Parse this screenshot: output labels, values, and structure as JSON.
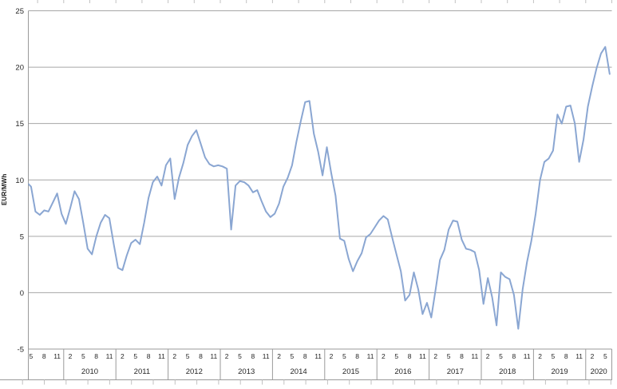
{
  "chart_data": {
    "type": "line",
    "title": "",
    "ylabel": "EUR/MWh",
    "xlabel": "",
    "ylim": [
      -5,
      25
    ],
    "y_ticks": [
      25,
      20,
      15,
      10,
      5,
      0,
      -5
    ],
    "grid": true,
    "legend_position": "none",
    "background": "#ffffff",
    "line_color": "#8aa6d2",
    "gridline_color": "#a6a6a6",
    "axis_color": "#9a9a9a",
    "minor_tick_color": "#c2c2c2",
    "text_color": "#262626",
    "series": [
      {
        "name": "EUR/MWh monthly",
        "start_month": "2009-04",
        "end_month": "2020-06",
        "monthly_values": [
          9.8,
          9.4,
          7.2,
          6.9,
          7.3,
          7.2,
          8.0,
          8.8,
          7.0,
          6.1,
          7.5,
          9.0,
          8.3,
          6.2,
          3.9,
          3.4,
          5.0,
          6.2,
          6.9,
          6.6,
          4.3,
          2.2,
          2.0,
          3.3,
          4.4,
          4.7,
          4.3,
          6.2,
          8.4,
          9.8,
          10.3,
          9.5,
          11.3,
          11.9,
          8.3,
          10.2,
          11.5,
          13.1,
          13.9,
          14.4,
          13.2,
          12.0,
          11.4,
          11.2,
          11.3,
          11.2,
          11.0,
          5.6,
          9.5,
          9.9,
          9.8,
          9.5,
          8.9,
          9.1,
          8.1,
          7.2,
          6.7,
          7.0,
          7.9,
          9.4,
          10.2,
          11.3,
          13.4,
          15.2,
          16.9,
          17.0,
          14.1,
          12.5,
          10.4,
          12.9,
          10.6,
          8.6,
          4.8,
          4.6,
          3.0,
          1.9,
          2.8,
          3.5,
          4.9,
          5.2,
          5.8,
          6.4,
          6.8,
          6.5,
          4.9,
          3.4,
          1.9,
          -0.7,
          -0.2,
          1.8,
          0.3,
          -1.9,
          -0.9,
          -2.2,
          0.3,
          2.9,
          3.8,
          5.6,
          6.4,
          6.3,
          4.7,
          3.9,
          3.8,
          3.6,
          2.0,
          -1.0,
          1.3,
          -0.4,
          -2.9,
          1.8,
          1.4,
          1.2,
          -0.2,
          -3.2,
          0.3,
          2.7,
          4.6,
          7.0,
          10.0,
          11.6,
          11.9,
          12.6,
          15.8,
          15.0,
          16.5,
          16.6,
          15.0,
          11.6,
          13.6,
          16.5,
          18.3,
          19.9,
          21.2,
          21.8,
          19.4
        ]
      }
    ],
    "x_axis": {
      "years": [
        {
          "label": "",
          "month_labels": [
            "5",
            "8",
            "11"
          ]
        },
        {
          "label": "2010",
          "month_labels": [
            "2",
            "5",
            "8",
            "11"
          ]
        },
        {
          "label": "2011",
          "month_labels": [
            "2",
            "5",
            "8",
            "11"
          ]
        },
        {
          "label": "2012",
          "month_labels": [
            "2",
            "5",
            "8",
            "11"
          ]
        },
        {
          "label": "2013",
          "month_labels": [
            "2",
            "5",
            "8",
            "11"
          ]
        },
        {
          "label": "2014",
          "month_labels": [
            "2",
            "5",
            "8",
            "11"
          ]
        },
        {
          "label": "2015",
          "month_labels": [
            "2",
            "5",
            "8",
            "11"
          ]
        },
        {
          "label": "2016",
          "month_labels": [
            "2",
            "5",
            "8",
            "11"
          ]
        },
        {
          "label": "2017",
          "month_labels": [
            "2",
            "5",
            "8",
            "11"
          ]
        },
        {
          "label": "2018",
          "month_labels": [
            "2",
            "5",
            "8",
            "11"
          ]
        },
        {
          "label": "2019",
          "month_labels": [
            "2",
            "5",
            "8",
            "11"
          ]
        },
        {
          "label": "2020",
          "month_labels": [
            "2",
            "5"
          ]
        }
      ]
    }
  }
}
